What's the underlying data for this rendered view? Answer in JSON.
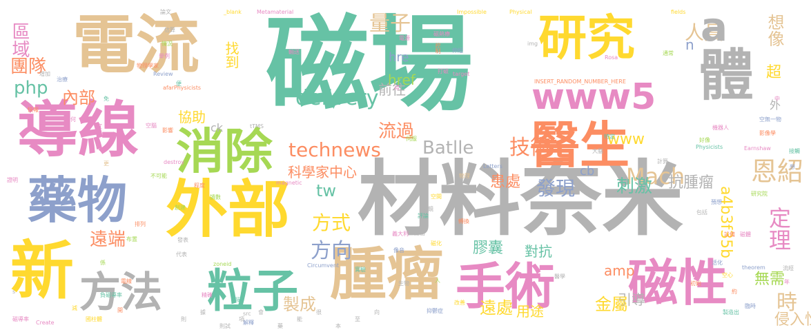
{
  "palette": {
    "teal": "#66c2a5",
    "orange": "#fc8d62",
    "blue": "#8da0cb",
    "pink": "#e78ac3",
    "green": "#a6d854",
    "yellow": "#ffd92f",
    "tan": "#e5c494",
    "gray": "#b3b3b3"
  },
  "words": [
    "磁場",
    "材料奈米",
    "電流",
    "導線",
    "外部",
    "醫生",
    "研究",
    "體",
    "藥物",
    "新",
    "腫瘤",
    "手術",
    "磁性",
    "消除",
    "粒子",
    "方法",
    "www5",
    "delivery",
    "technews",
    "Batlle",
    "區域",
    "團隊",
    "php",
    "內部",
    "協助",
    "ck",
    "量子",
    "人員",
    "a",
    "想像",
    "找到",
    "hre",
    "href",
    "n",
    "超",
    "前往",
    "www",
    "技術",
    "流過",
    "Mach",
    "恩紹",
    "tw",
    "方式",
    "科學家中心",
    "cb",
    "a4b3f35b",
    "發現",
    "刺激",
    "抗腫瘤",
    "方向",
    "定理",
    "遠端",
    "膠囊",
    "對抗",
    "時",
    "amp",
    "引導",
    "無需",
    "金屬",
    "製成",
    "遠處",
    "用途",
    "侵入性",
    "患處",
    "外",
    "Impossible",
    "Physical",
    "fields",
    "_blank",
    "Metamaterial",
    "論文",
    "img",
    "Rosa",
    "Review",
    "target",
    "INSERT_RANDOM_NUMBER_HERE",
    "afarPhysicists",
    "Physicists",
    "Earnshaw",
    "Letters",
    "destroy",
    "magnetic",
    "Circumvent",
    "zoneid",
    "src",
    "Create",
    "theorem",
    "tTMS",
    "物理學家",
    "物理",
    "不可能",
    "機器人",
    "好像",
    "影像學",
    "空無一物",
    "研究院",
    "空心",
    "證明",
    "磁導率",
    "國柱體",
    "解釋",
    "抑鬱症",
    "改善",
    "醫學",
    "生物",
    "初始",
    "代表",
    "精確",
    "翻磁",
    "負磁導率",
    "電線",
    "排列",
    "布置",
    "空間",
    "圈鏡",
    "指出",
    "義大利",
    "像音",
    "轉換",
    "磁化",
    "實驗",
    "程度",
    "讀數",
    "創建",
    "快報",
    "治療",
    "增加",
    "便",
    "特定",
    "大腦",
    "計算",
    "包括",
    "預想",
    "製造出",
    "臨時",
    "活化",
    "設備",
    "估算",
    "情況",
    "舉例",
    "輸送",
    "伸經",
    "控制",
    "電源",
    "磁熱療",
    "打破",
    "通常",
    "接觸",
    "想",
    "流經",
    "年",
    "磁體",
    "約",
    "中",
    "免",
    "何",
    "宜",
    "更",
    "影響",
    "空腦",
    "發表",
    "s",
    "係",
    "減",
    "開",
    "評論",
    "得",
    "伺服",
    "人",
    "則",
    "據",
    "則試",
    "項",
    "會",
    "藥",
    "能",
    "很",
    "本",
    "至",
    "向"
  ]
}
